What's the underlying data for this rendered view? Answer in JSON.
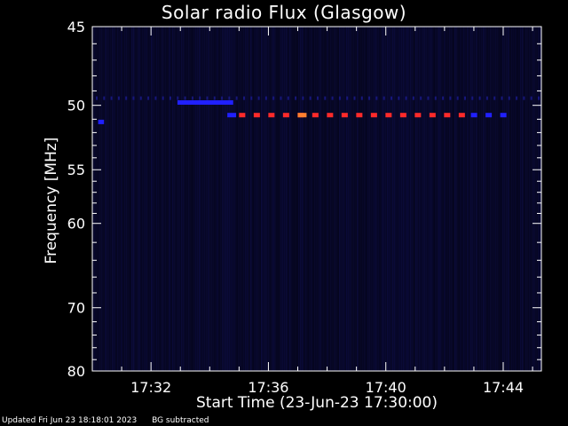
{
  "chart_data": {
    "type": "heatmap",
    "title": "Solar radio Flux (Glasgow)",
    "xlabel": "Start Time (23-Jun-23 17:30:00)",
    "ylabel": "Frequency [MHz]",
    "x_unit": "minutes after 17:30",
    "xlim": [
      0.0,
      15.3
    ],
    "ylim": [
      45,
      80
    ],
    "x_ticks": [
      {
        "value": 2,
        "label": "17:32"
      },
      {
        "value": 6,
        "label": "17:36"
      },
      {
        "value": 10,
        "label": "17:40"
      },
      {
        "value": 14,
        "label": "17:44"
      }
    ],
    "y_ticks": [
      {
        "value": 45,
        "label": "45"
      },
      {
        "value": 50,
        "label": "50"
      },
      {
        "value": 55,
        "label": "55"
      },
      {
        "value": 60,
        "label": "60"
      },
      {
        "value": 70,
        "label": "70"
      },
      {
        "value": 80,
        "label": "80"
      }
    ],
    "y_minor_ticks": [
      46,
      47,
      48,
      49,
      51,
      52,
      53,
      54,
      56,
      57,
      58,
      59,
      62,
      64,
      66,
      68,
      72,
      74,
      76,
      78
    ],
    "colormap": {
      "background": "#05051a",
      "low": "#1a1a8a",
      "mid": "#2020ff",
      "high": "#ff2a2a",
      "peak": "#ff8030"
    },
    "features": [
      {
        "freq": 49.8,
        "t_start": 2.9,
        "t_end": 4.8,
        "intensity": "mid",
        "kind": "band"
      },
      {
        "freq": 49.5,
        "t_start": 0.0,
        "t_end": 15.3,
        "intensity": "low",
        "kind": "dotted"
      },
      {
        "freq": 50.7,
        "t_start": 4.6,
        "t_end": 4.9,
        "intensity": "mid",
        "kind": "band"
      },
      {
        "freq": 50.7,
        "t_start": 5.0,
        "t_end": 12.8,
        "intensity": "high",
        "kind": "dashed"
      },
      {
        "freq": 50.7,
        "t_start": 7.0,
        "t_end": 7.3,
        "intensity": "peak",
        "kind": "band"
      },
      {
        "freq": 50.7,
        "t_start": 12.9,
        "t_end": 14.2,
        "intensity": "mid",
        "kind": "dashed"
      },
      {
        "freq": 51.2,
        "t_start": 0.2,
        "t_end": 0.4,
        "intensity": "mid",
        "kind": "band"
      }
    ]
  },
  "footer": {
    "updated": "Updated Fri Jun 23 18:18:01 2023",
    "note": "BG subtracted"
  }
}
